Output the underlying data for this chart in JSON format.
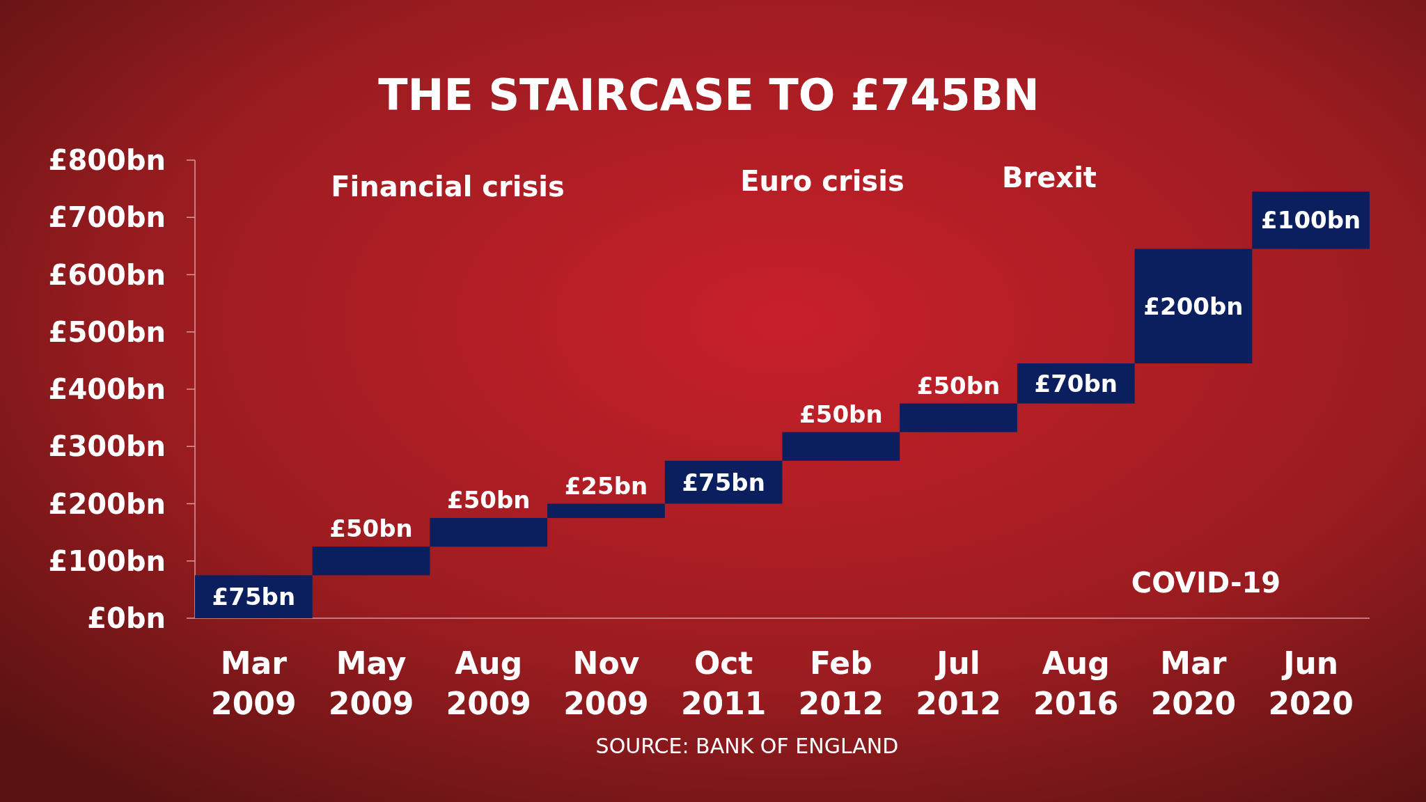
{
  "chart_data": {
    "type": "bar",
    "title": "THE STAIRCASE TO £745BN",
    "categories": [
      "Mar 2009",
      "May 2009",
      "Aug 2009",
      "Nov 2009",
      "Oct 2011",
      "Feb 2012",
      "Jul 2012",
      "Aug 2016",
      "Mar 2020",
      "Jun 2020"
    ],
    "values": [
      75,
      50,
      50,
      25,
      75,
      50,
      50,
      70,
      200,
      100
    ],
    "base": [
      0,
      75,
      125,
      175,
      200,
      275,
      325,
      375,
      445,
      645
    ],
    "value_labels": [
      "£75bn",
      "£50bn",
      "£50bn",
      "£25bn",
      "£75bn",
      "£50bn",
      "£50bn",
      "£70bn",
      "£200bn",
      "£100bn"
    ],
    "color": "#0b1f5e",
    "ylim": [
      0,
      800
    ],
    "yticks": [
      {
        "value": 0,
        "label": "£0bn"
      },
      {
        "value": 100,
        "label": "£100bn"
      },
      {
        "value": 200,
        "label": "£200bn"
      },
      {
        "value": 300,
        "label": "£300bn"
      },
      {
        "value": 400,
        "label": "£400bn"
      },
      {
        "value": 500,
        "label": "£500bn"
      },
      {
        "value": 600,
        "label": "£600bn"
      },
      {
        "value": 700,
        "label": "£700bn"
      },
      {
        "value": 800,
        "label": "£800bn"
      }
    ],
    "annotations": [
      "Financial crisis",
      "Euro crisis",
      "Brexit",
      "COVID-19",
      "SOURCE: BANK OF ENGLAND"
    ]
  }
}
